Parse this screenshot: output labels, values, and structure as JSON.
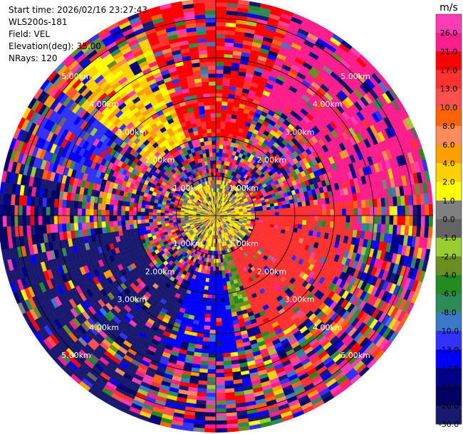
{
  "header": {
    "start_time": "Start time: 2026/02/16 23:27:43",
    "instrument": "WLS200s-181",
    "field": "Field: VEL",
    "elevation": "Elevation(deg): 35.00",
    "nrays": "NRays: 120"
  },
  "chart_data": {
    "type": "heatmap",
    "projection": "polar-ppi",
    "field": "VEL",
    "units": "m/s",
    "nrays": 120,
    "elevation_deg": 35.0,
    "max_range_km": 5.5,
    "range_rings_km": [
      1,
      2,
      3,
      4,
      5
    ],
    "range_ring_labels": [
      "1.00km",
      "2.00km",
      "3.00km",
      "4.00km",
      "5.00km"
    ],
    "colorbar": {
      "title": "m/s",
      "tick_labels": [
        "26.0",
        "21.0",
        "17.0",
        "13.0",
        "10.0",
        "8.0",
        "6.0",
        "4.0",
        "2.0",
        "1.0",
        "0.0",
        "-1.0",
        "-2.0",
        "-4.0",
        "-6.0",
        "-8.0",
        "-10.0",
        "-13.0",
        "-17.0",
        "-21.0",
        "-26.0",
        "-30.0"
      ],
      "bins": [
        {
          "min": 26,
          "max": 30,
          "color": "#ff3cb4"
        },
        {
          "min": 21,
          "max": 26,
          "color": "#ff1e8c"
        },
        {
          "min": 17,
          "max": 21,
          "color": "#ff0000"
        },
        {
          "min": 13,
          "max": 17,
          "color": "#ff3232"
        },
        {
          "min": 10,
          "max": 13,
          "color": "#ff5050"
        },
        {
          "min": 8,
          "max": 10,
          "color": "#ff6400"
        },
        {
          "min": 6,
          "max": 8,
          "color": "#ff8c5a"
        },
        {
          "min": 4,
          "max": 6,
          "color": "#ffa000"
        },
        {
          "min": 2,
          "max": 4,
          "color": "#ffd200"
        },
        {
          "min": 1,
          "max": 2,
          "color": "#ffff00"
        },
        {
          "min": 0,
          "max": 1,
          "color": "#808080"
        },
        {
          "min": -1,
          "max": 0,
          "color": "#646464"
        },
        {
          "min": -2,
          "max": -1,
          "color": "#9acd32"
        },
        {
          "min": -4,
          "max": -2,
          "color": "#6b8e23"
        },
        {
          "min": -6,
          "max": -4,
          "color": "#228b22"
        },
        {
          "min": -8,
          "max": -6,
          "color": "#2e8b57"
        },
        {
          "min": -10,
          "max": -8,
          "color": "#3c78c8"
        },
        {
          "min": -13,
          "max": -10,
          "color": "#3232ff"
        },
        {
          "min": -17,
          "max": -13,
          "color": "#0000ff"
        },
        {
          "min": -21,
          "max": -17,
          "color": "#00008b"
        },
        {
          "min": -26,
          "max": -21,
          "color": "#000064"
        },
        {
          "min": -30,
          "max": -26,
          "color": "#191970"
        }
      ]
    },
    "dominant_sectors": [
      {
        "azimuth_from_deg": 20,
        "azimuth_to_deg": 85,
        "range_from_km": 3.0,
        "range_to_km": 5.5,
        "velocity_ms": 24
      },
      {
        "azimuth_from_deg": 85,
        "azimuth_to_deg": 160,
        "range_from_km": 1.0,
        "range_to_km": 3.5,
        "velocity_ms": 15
      },
      {
        "azimuth_from_deg": 340,
        "azimuth_to_deg": 20,
        "range_from_km": 2.0,
        "range_to_km": 5.5,
        "velocity_ms": 18
      },
      {
        "azimuth_from_deg": 310,
        "azimuth_to_deg": 340,
        "range_from_km": 2.0,
        "range_to_km": 5.0,
        "velocity_ms": 3
      },
      {
        "azimuth_from_deg": 285,
        "azimuth_to_deg": 310,
        "range_from_km": 3.0,
        "range_to_km": 5.0,
        "velocity_ms": -12
      },
      {
        "azimuth_from_deg": 200,
        "azimuth_to_deg": 260,
        "range_from_km": 2.0,
        "range_to_km": 5.5,
        "velocity_ms": -28
      },
      {
        "azimuth_from_deg": 170,
        "azimuth_to_deg": 200,
        "range_from_km": 1.5,
        "range_to_km": 3.5,
        "velocity_ms": -15
      },
      {
        "azimuth_from_deg": 150,
        "azimuth_to_deg": 175,
        "range_from_km": 1.0,
        "range_to_km": 2.5,
        "velocity_ms": -3
      },
      {
        "azimuth_from_deg": 260,
        "azimuth_to_deg": 285,
        "range_from_km": 4.0,
        "range_to_km": 5.5,
        "velocity_ms": -25
      },
      {
        "azimuth_from_deg": 0,
        "azimuth_to_deg": 360,
        "range_from_km": 0.0,
        "range_to_km": 0.9,
        "velocity_ms": 1.5
      }
    ]
  }
}
